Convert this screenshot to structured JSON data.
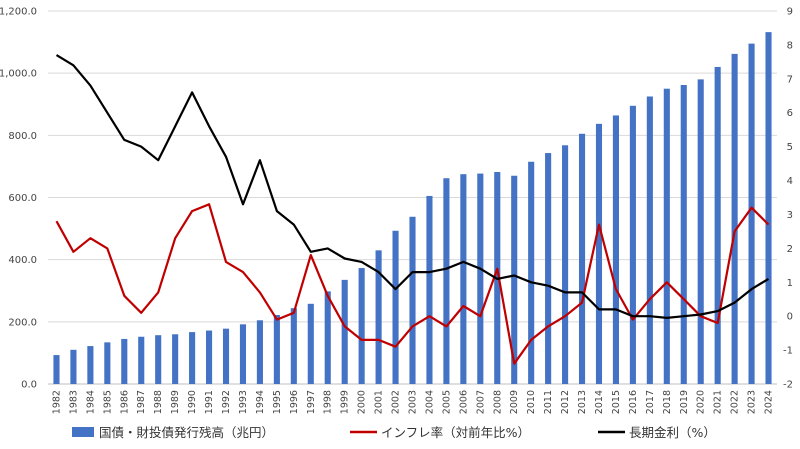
{
  "chart_data": {
    "type": "bar+line",
    "categories": [
      "1982",
      "1983",
      "1984",
      "1985",
      "1986",
      "1987",
      "1988",
      "1989",
      "1990",
      "1991",
      "1992",
      "1993",
      "1994",
      "1995",
      "1996",
      "1997",
      "1998",
      "1999",
      "2000",
      "2001",
      "2002",
      "2003",
      "2004",
      "2005",
      "2006",
      "2007",
      "2008",
      "2009",
      "2010",
      "2011",
      "2012",
      "2013",
      "2014",
      "2015",
      "2016",
      "2017",
      "2018",
      "2019",
      "2020",
      "2021",
      "2022",
      "2023",
      "2024"
    ],
    "left_axis": {
      "min": 0,
      "max": 1200,
      "step": 200,
      "tick_labels": [
        "0.0",
        "200.0",
        "400.0",
        "600.0",
        "800.0",
        "1,000.0",
        "1,200.0"
      ]
    },
    "right_axis": {
      "min": -2,
      "max": 9,
      "step": 1,
      "tick_labels": [
        "-2",
        "-1",
        "0",
        "1",
        "2",
        "3",
        "4",
        "5",
        "6",
        "7",
        "8",
        "9"
      ]
    },
    "grid": true,
    "legend_position": "bottom",
    "series": [
      {
        "name": "国債・財投債発行残高（兆円）",
        "type": "bar",
        "axis": "left",
        "color": "#4472c4",
        "values": [
          93,
          110,
          122,
          134,
          145,
          152,
          157,
          160,
          167,
          172,
          178,
          192,
          205,
          222,
          244,
          258,
          298,
          335,
          373,
          430,
          493,
          538,
          605,
          662,
          675,
          677,
          682,
          670,
          715,
          743,
          768,
          805,
          837,
          864,
          895,
          925,
          950,
          962,
          980,
          1020,
          1062,
          1095,
          1132
        ]
      },
      {
        "name": "インフレ率（対前年比%）",
        "type": "line",
        "axis": "right",
        "color": "#c00000",
        "values": [
          2.8,
          1.9,
          2.3,
          2.0,
          0.6,
          0.1,
          0.7,
          2.3,
          3.1,
          3.3,
          1.6,
          1.3,
          0.7,
          -0.1,
          0.1,
          1.8,
          0.6,
          -0.3,
          -0.7,
          -0.7,
          -0.9,
          -0.3,
          0.0,
          -0.3,
          0.3,
          0.0,
          1.4,
          -1.4,
          -0.7,
          -0.3,
          0.0,
          0.4,
          2.7,
          0.8,
          -0.1,
          0.5,
          1.0,
          0.5,
          0.0,
          -0.2,
          2.5,
          3.2,
          2.7
        ]
      },
      {
        "name": "長期金利（%）",
        "type": "line",
        "axis": "right",
        "color": "#000000",
        "values": [
          7.7,
          7.4,
          6.8,
          6.0,
          5.2,
          5.0,
          4.6,
          5.6,
          6.6,
          5.6,
          4.7,
          3.3,
          4.6,
          3.1,
          2.7,
          1.9,
          2.0,
          1.7,
          1.6,
          1.3,
          0.8,
          1.3,
          1.3,
          1.4,
          1.6,
          1.4,
          1.1,
          1.2,
          1.0,
          0.9,
          0.7,
          0.7,
          0.2,
          0.2,
          0.0,
          0.0,
          -0.05,
          0.0,
          0.05,
          0.15,
          0.4,
          0.8,
          1.1
        ]
      }
    ]
  }
}
